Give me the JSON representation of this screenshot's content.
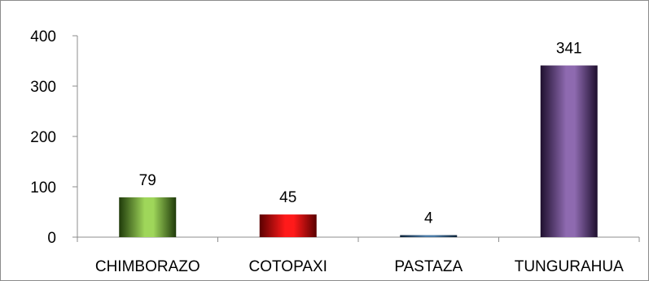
{
  "chart_data": {
    "type": "bar",
    "title": "",
    "xlabel": "",
    "ylabel": "",
    "categories": [
      "CHIMBORAZO",
      "COTOPAXI",
      "PASTAZA",
      "TUNGURAHUA"
    ],
    "values": [
      79,
      45,
      4,
      341
    ],
    "data_labels": [
      "79",
      "45",
      "4",
      "341"
    ],
    "y_ticks": [
      "0",
      "100",
      "200",
      "300",
      "400"
    ],
    "ylim": [
      0,
      400
    ],
    "grid": false,
    "legend": "none",
    "bar_colors": [
      {
        "light": "#9fd65a",
        "dark": "#1f3a0a"
      },
      {
        "light": "#ff1a1a",
        "dark": "#5a0000"
      },
      {
        "light": "#4a7aa6",
        "dark": "#0c2238"
      },
      {
        "light": "#8e6ab0",
        "dark": "#1e0f2e"
      }
    ]
  }
}
